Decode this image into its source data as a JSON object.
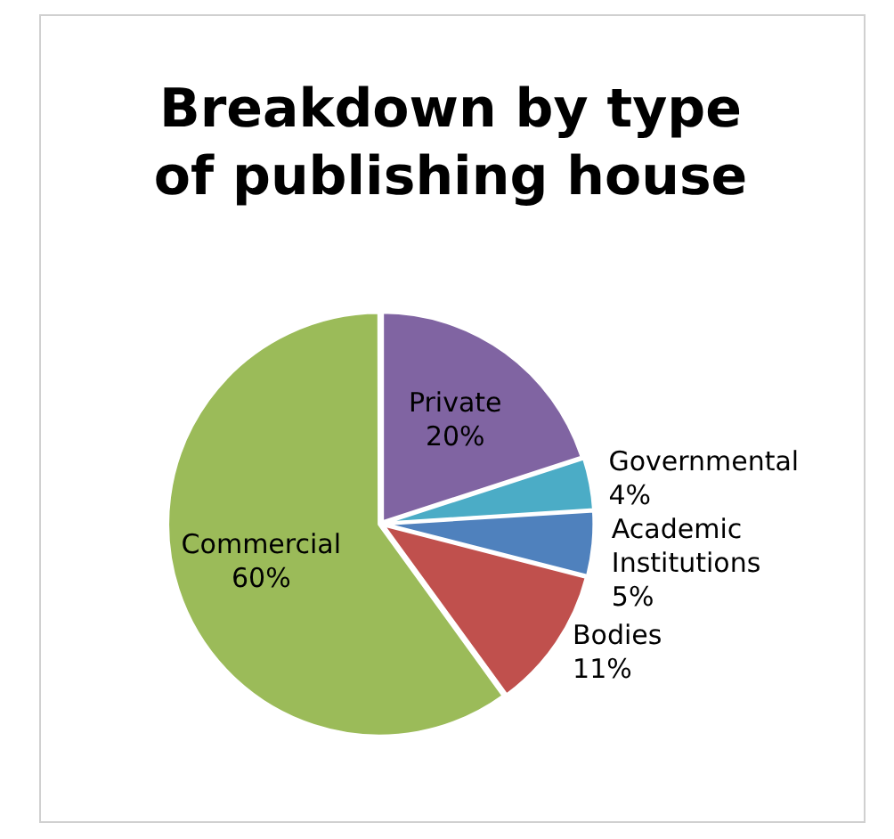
{
  "chart_data": {
    "type": "pie",
    "title": "Breakdown by type of publishing house",
    "categories": [
      "Private",
      "Governmental",
      "Academic Institutions",
      "Bodies",
      "Commercial"
    ],
    "values": [
      20,
      4,
      5,
      11,
      60
    ],
    "colors": [
      "#8064a2",
      "#4bacc6",
      "#4f81bd",
      "#c0504d",
      "#9bbb59"
    ],
    "value_labels": [
      "20%",
      "4%",
      "5%",
      "11%",
      "60%"
    ],
    "legend": false
  }
}
